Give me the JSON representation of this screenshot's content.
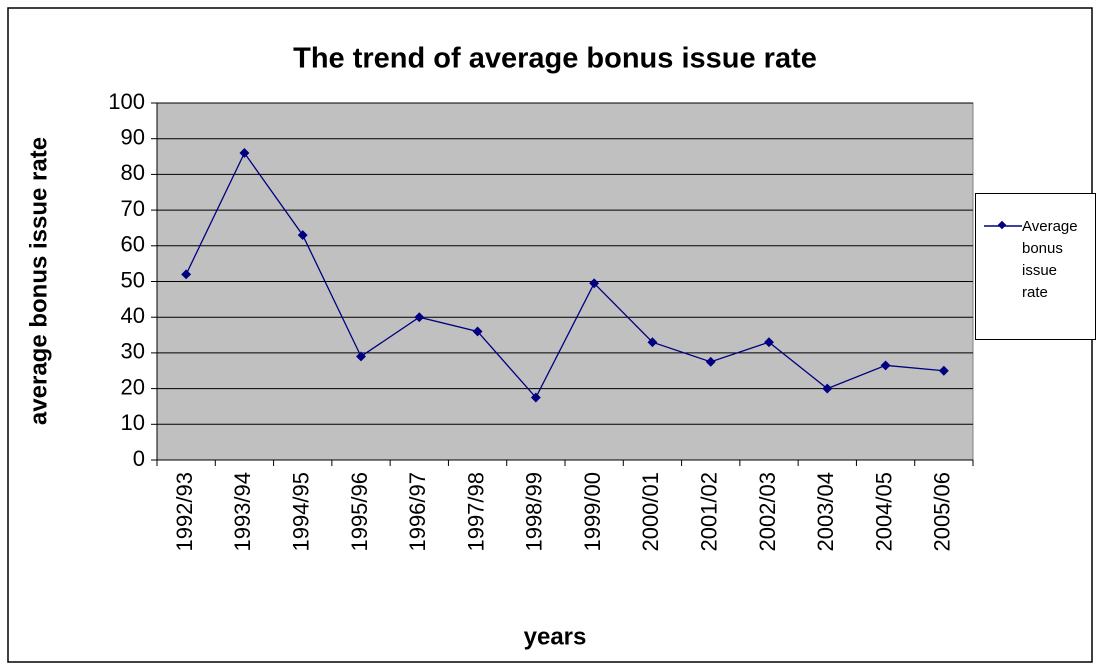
{
  "chart_data": {
    "type": "line",
    "title": "The trend of average bonus issue rate",
    "x_label": "years",
    "y_label": "average bonus issue rate",
    "categories": [
      "1992/93",
      "1993/94",
      "1994/95",
      "1995/96",
      "1996/97",
      "1997/98",
      "1998/99",
      "1999/00",
      "2000/01",
      "2001/02",
      "2002/03",
      "2003/04",
      "2004/05",
      "2005/06"
    ],
    "series": [
      {
        "name": "Average bonus issue rate",
        "color": "#000080",
        "values": [
          52,
          86,
          63,
          29,
          40,
          36,
          17.5,
          49.5,
          33,
          27.5,
          33,
          20,
          26.5,
          25
        ]
      }
    ],
    "ylim": [
      0,
      100
    ],
    "yticks": [
      0,
      10,
      20,
      30,
      40,
      50,
      60,
      70,
      80,
      90,
      100
    ],
    "grid": true,
    "legend": "right"
  }
}
